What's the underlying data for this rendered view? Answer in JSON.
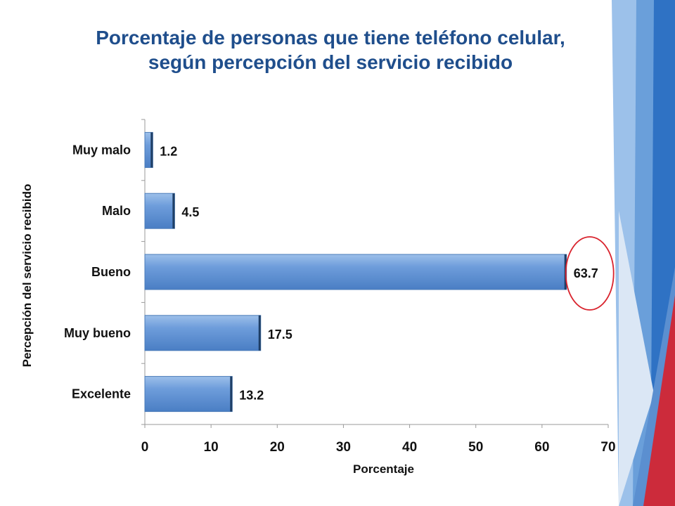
{
  "slide": {
    "title_line1": "Porcentaje de personas que tiene teléfono celular,",
    "title_line2": "según percepción del servicio recibido"
  },
  "colors": {
    "title": "#1f4e8c",
    "bar_fill": "#4f81bd",
    "bar_light": "#8db3e2",
    "bar_dark": "#1f3f66",
    "highlight_circle": "#d9232d",
    "deco_blue_dark": "#2f6fbf",
    "deco_blue_light": "#8fb7e6",
    "deco_red": "#cc2b3b"
  },
  "chart_data": {
    "type": "bar",
    "orientation": "horizontal",
    "categories": [
      "Muy malo",
      "Malo",
      "Bueno",
      "Muy bueno",
      "Excelente"
    ],
    "values": [
      1.2,
      4.5,
      63.7,
      17.5,
      13.2
    ],
    "value_labels": [
      "1.2",
      "4.5",
      "63.7",
      "17.5",
      "13.2"
    ],
    "xlabel": "Porcentaje",
    "ylabel": "Percepción del servicio recibido",
    "xlim": [
      0,
      70
    ],
    "xticks": [
      0,
      10,
      20,
      30,
      40,
      50,
      60,
      70
    ],
    "grid": false,
    "legend": "none",
    "highlight_category": "Bueno"
  }
}
